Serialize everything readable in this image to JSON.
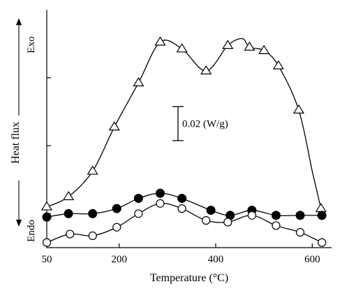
{
  "chart_data": {
    "type": "line",
    "xlabel": "Temperature (°C)",
    "ylabel": "Heat flux",
    "y_top_label": "Exo",
    "y_bottom_label": "Endo",
    "scale_bar_label": "0.02 (W/g)",
    "scale_bar_value": 0.02,
    "xlim": [
      50,
      640
    ],
    "ylim": [
      0,
      0.14
    ],
    "x_ticks": [
      {
        "value": 50,
        "label": "50"
      },
      {
        "value": 200,
        "label": "200"
      },
      {
        "value": 400,
        "label": "400"
      },
      {
        "value": 600,
        "label": "600"
      }
    ],
    "y_ticks_unlabeled": [
      0.02,
      0.06,
      0.1
    ],
    "grid": false,
    "legend": "none",
    "series": [
      {
        "marker": "triangle-open",
        "color": "#000000",
        "x": [
          50,
          95,
          145,
          190,
          240,
          285,
          330,
          380,
          425,
          470,
          500,
          530,
          572,
          618
        ],
        "y": [
          0.024,
          0.03,
          0.045,
          0.071,
          0.097,
          0.121,
          0.117,
          0.104,
          0.119,
          0.118,
          0.116,
          0.107,
          0.081,
          0.023
        ],
        "curve_x": [
          50,
          95,
          145,
          190,
          240,
          285,
          330,
          380,
          425,
          455,
          470,
          500,
          530,
          572,
          600,
          618
        ],
        "curve_y": [
          0.024,
          0.03,
          0.045,
          0.071,
          0.097,
          0.121,
          0.117,
          0.104,
          0.119,
          0.123,
          0.118,
          0.116,
          0.107,
          0.081,
          0.045,
          0.023
        ]
      },
      {
        "marker": "circle-filled",
        "color": "#000000",
        "x": [
          50,
          95,
          145,
          195,
          240,
          285,
          330,
          390,
          430,
          475,
          525,
          575,
          620
        ],
        "y": [
          0.018,
          0.02,
          0.02,
          0.023,
          0.029,
          0.032,
          0.029,
          0.022,
          0.019,
          0.022,
          0.019,
          0.019,
          0.019
        ],
        "curve_x": [
          50,
          95,
          145,
          195,
          240,
          285,
          330,
          390,
          430,
          475,
          525,
          575,
          620
        ],
        "curve_y": [
          0.018,
          0.02,
          0.02,
          0.023,
          0.029,
          0.032,
          0.029,
          0.022,
          0.019,
          0.022,
          0.019,
          0.019,
          0.019
        ]
      },
      {
        "marker": "circle-open",
        "color": "#000000",
        "x": [
          50,
          98,
          145,
          195,
          240,
          285,
          330,
          380,
          425,
          475,
          525,
          575,
          620
        ],
        "y": [
          0.003,
          0.008,
          0.007,
          0.012,
          0.02,
          0.026,
          0.023,
          0.016,
          0.015,
          0.019,
          0.013,
          0.009,
          0.003
        ],
        "curve_x": [
          50,
          98,
          145,
          195,
          240,
          285,
          330,
          380,
          425,
          475,
          525,
          575,
          620
        ],
        "curve_y": [
          0.003,
          0.008,
          0.007,
          0.012,
          0.02,
          0.026,
          0.023,
          0.016,
          0.015,
          0.019,
          0.013,
          0.009,
          0.003
        ]
      }
    ]
  }
}
